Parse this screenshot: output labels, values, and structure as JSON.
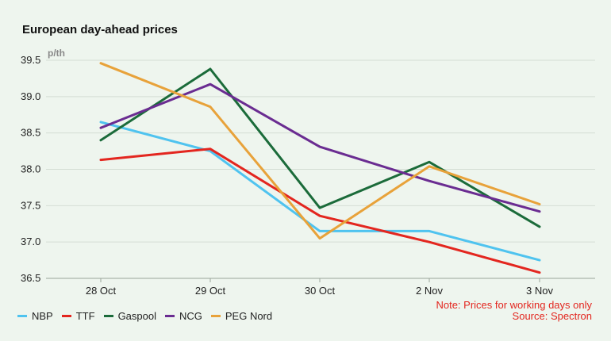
{
  "chart_data": {
    "type": "line",
    "title": "European day-ahead prices",
    "unit": "p/th",
    "categories": [
      "28 Oct",
      "29 Oct",
      "30 Oct",
      "2 Nov",
      "3 Nov"
    ],
    "ylim": [
      36.5,
      39.5
    ],
    "yticks": [
      "36.5",
      "37.0",
      "37.5",
      "38.0",
      "38.5",
      "39.0",
      "39.5"
    ],
    "grid": true,
    "legend_position": "bottom-left",
    "series": [
      {
        "name": "NBP",
        "color": "#4fc3ef",
        "values": [
          38.65,
          38.25,
          37.15,
          37.15,
          36.75
        ]
      },
      {
        "name": "TTF",
        "color": "#e3261f",
        "values": [
          38.13,
          38.28,
          37.36,
          37.0,
          36.58
        ]
      },
      {
        "name": "Gaspool",
        "color": "#1b6b3a",
        "values": [
          38.4,
          39.38,
          37.47,
          38.1,
          37.21
        ]
      },
      {
        "name": "NCG",
        "color": "#6a2c91",
        "values": [
          38.57,
          39.17,
          38.31,
          37.84,
          37.42
        ]
      },
      {
        "name": "PEG Nord",
        "color": "#e8a23a",
        "values": [
          39.46,
          38.86,
          37.05,
          38.04,
          37.52
        ]
      }
    ]
  },
  "footnote": {
    "note": "Note: Prices for working days only",
    "source": "Source: Spectron"
  }
}
